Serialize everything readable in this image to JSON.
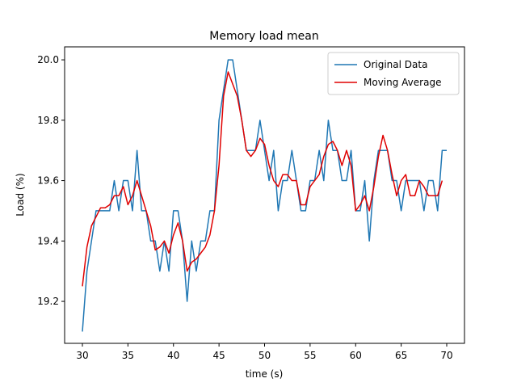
{
  "chart_data": {
    "type": "line",
    "title": "Memory load mean",
    "xlabel": "time (s)",
    "ylabel": "Load (%)",
    "x": [
      30,
      30.5,
      31,
      31.5,
      32,
      32.5,
      33,
      33.5,
      34,
      34.5,
      35,
      35.5,
      36,
      36.5,
      37,
      37.5,
      38,
      38.5,
      39,
      39.5,
      40,
      40.5,
      41,
      41.5,
      42,
      42.5,
      43,
      43.5,
      44,
      44.5,
      45,
      45.5,
      46,
      46.5,
      47,
      47.5,
      48,
      48.5,
      49,
      49.5,
      50,
      50.5,
      51,
      51.5,
      52,
      52.5,
      53,
      53.5,
      54,
      54.5,
      55,
      55.5,
      56,
      56.5,
      57,
      57.5,
      58,
      58.5,
      59,
      59.5,
      60,
      60.5,
      61,
      61.5,
      62,
      62.5,
      63,
      63.5,
      64,
      64.5,
      65,
      65.5,
      66,
      66.5,
      67,
      67.5,
      68,
      68.5,
      69,
      69.5,
      70
    ],
    "series": [
      {
        "name": "Original Data",
        "color": "#1f77b4",
        "values": [
          19.1,
          19.3,
          19.4,
          19.5,
          19.5,
          19.5,
          19.5,
          19.6,
          19.5,
          19.6,
          19.6,
          19.5,
          19.7,
          19.5,
          19.5,
          19.4,
          19.4,
          19.3,
          19.4,
          19.3,
          19.5,
          19.5,
          19.4,
          19.2,
          19.4,
          19.3,
          19.4,
          19.4,
          19.5,
          19.5,
          19.8,
          19.9,
          20.0,
          20.0,
          19.9,
          19.8,
          19.7,
          19.7,
          19.7,
          19.8,
          19.7,
          19.6,
          19.7,
          19.5,
          19.6,
          19.6,
          19.7,
          19.6,
          19.5,
          19.5,
          19.6,
          19.6,
          19.7,
          19.6,
          19.8,
          19.7,
          19.7,
          19.6,
          19.6,
          19.7,
          19.5,
          19.5,
          19.6,
          19.4,
          19.6,
          19.7,
          19.7,
          19.7,
          19.6,
          19.6,
          19.5,
          19.6,
          19.6,
          19.6,
          19.6,
          19.5,
          19.6,
          19.6,
          19.5,
          19.7,
          19.7
        ]
      },
      {
        "name": "Moving Average",
        "color": "#e00000",
        "values": [
          19.25,
          19.38,
          19.45,
          19.48,
          19.51,
          19.51,
          19.52,
          19.55,
          19.55,
          19.58,
          19.52,
          19.55,
          19.6,
          19.55,
          19.5,
          19.45,
          19.37,
          19.38,
          19.4,
          19.36,
          19.42,
          19.46,
          19.4,
          19.3,
          19.33,
          19.34,
          19.36,
          19.38,
          19.42,
          19.5,
          19.65,
          19.88,
          19.96,
          19.92,
          19.88,
          19.8,
          19.7,
          19.68,
          19.7,
          19.74,
          19.72,
          19.65,
          19.6,
          19.58,
          19.62,
          19.62,
          19.6,
          19.6,
          19.52,
          19.52,
          19.58,
          19.6,
          19.62,
          19.68,
          19.72,
          19.73,
          19.7,
          19.65,
          19.7,
          19.65,
          19.5,
          19.52,
          19.55,
          19.5,
          19.58,
          19.68,
          19.75,
          19.7,
          19.62,
          19.55,
          19.6,
          19.62,
          19.55,
          19.55,
          19.6,
          19.58,
          19.55,
          19.55,
          19.55,
          19.6,
          null
        ]
      }
    ],
    "xlim": [
      28.05,
      71.95
    ],
    "xticks": [
      30,
      35,
      40,
      45,
      50,
      55,
      60,
      65,
      70
    ],
    "ylim": [
      19.061,
      20.043
    ],
    "yticks": [
      19.2,
      19.4,
      19.6,
      19.8,
      {
        "value": 20,
        "label": "20.0"
      }
    ],
    "grid": false,
    "legend": "upper right"
  }
}
